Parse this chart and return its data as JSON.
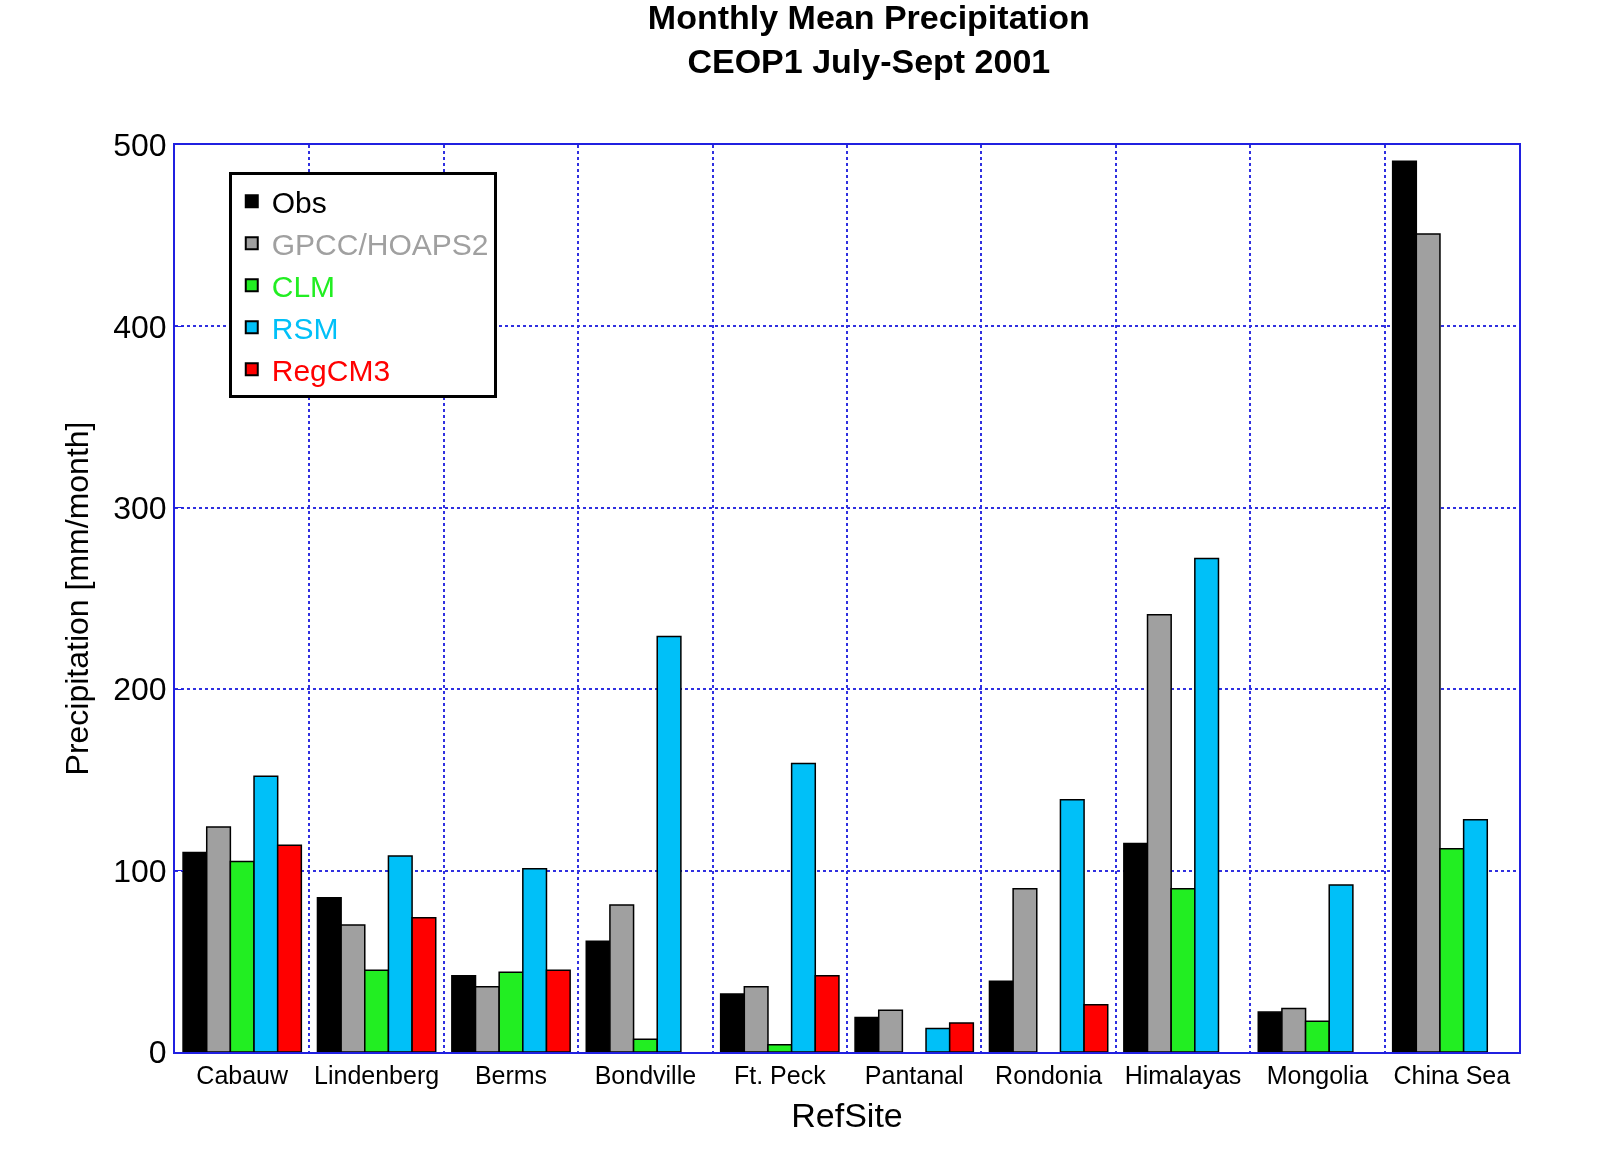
{
  "chart_data": {
    "type": "bar",
    "title": "Monthly Mean Precipitation\nCEOP1 July-Sept 2001",
    "xlabel": "RefSite",
    "ylabel": "Precipitation [mm/month]",
    "categories": [
      "Cabauw",
      "Lindenberg",
      "Berms",
      "Bondville",
      "Ft. Peck",
      "Pantanal",
      "Rondonia",
      "Himalayas",
      "Mongolia",
      "China Sea"
    ],
    "series": [
      {
        "name": "Obs",
        "color": "#000000",
        "values": [
          110,
          85,
          42,
          61,
          32,
          19,
          39,
          115,
          22,
          491
        ]
      },
      {
        "name": "GPCC/HOAPS2",
        "color": "#a0a0a0",
        "values": [
          124,
          70,
          36,
          81,
          36,
          23,
          90,
          241,
          24,
          451
        ]
      },
      {
        "name": "CLM",
        "color": "#22ee22",
        "values": [
          105,
          45,
          44,
          7,
          4,
          null,
          null,
          90,
          17,
          112
        ]
      },
      {
        "name": "RSM",
        "color": "#00c0f8",
        "values": [
          152,
          108,
          101,
          229,
          159,
          13,
          139,
          272,
          92,
          128
        ]
      },
      {
        "name": "RegCM3",
        "color": "#ff0000",
        "values": [
          114,
          74,
          45,
          null,
          42,
          16,
          26,
          null,
          null,
          null
        ]
      }
    ],
    "ylim": [
      0,
      500
    ],
    "yticks": [
      0,
      100,
      200,
      300,
      400,
      500
    ],
    "grid": true,
    "legend": "top left"
  }
}
